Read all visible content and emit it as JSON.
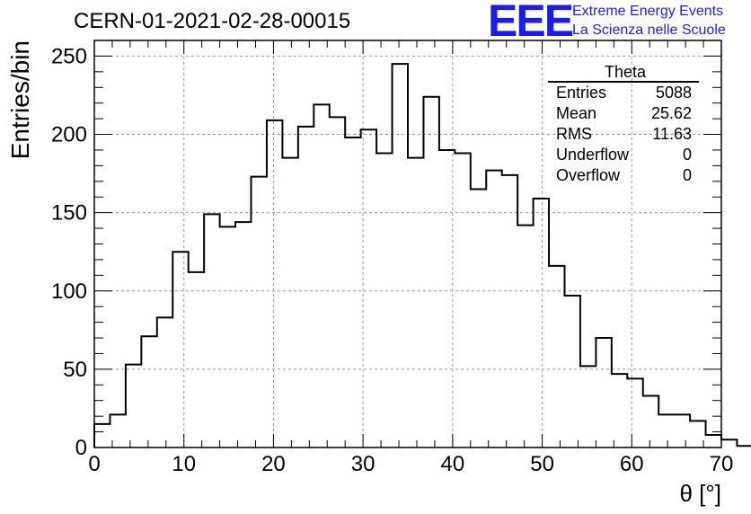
{
  "header": {
    "title": "CERN-01-2021-02-28-00015",
    "logo_mark": "EEE",
    "logo_line1": "Extreme Energy Events",
    "logo_line2": "La Scienza nelle Scuole",
    "accent": "#1c1cf0"
  },
  "stats_box": {
    "title": "Theta",
    "rows": [
      {
        "label": "Entries",
        "value": "5088"
      },
      {
        "label": "Mean",
        "value": "25.62"
      },
      {
        "label": "RMS",
        "value": "11.63"
      },
      {
        "label": "Underflow",
        "value": "0"
      },
      {
        "label": "Overflow",
        "value": "0"
      }
    ]
  },
  "chart_data": {
    "type": "bar",
    "style": "step-histogram",
    "title": "CERN-01-2021-02-28-00015",
    "xlabel": "θ [°]",
    "ylabel": "Entries/bin",
    "xlim": [
      0,
      70
    ],
    "ylim": [
      0,
      260
    ],
    "bin_width": 1.75,
    "bin_edges_start": 0,
    "values": [
      15,
      21,
      53,
      71,
      83,
      125,
      112,
      149,
      141,
      144,
      173,
      209,
      185,
      205,
      219,
      211,
      198,
      203,
      188,
      245,
      185,
      224,
      190,
      188,
      165,
      177,
      174,
      142,
      159,
      116,
      97,
      52,
      70,
      47,
      44,
      33,
      21,
      21,
      17,
      8,
      5,
      1,
      2,
      1,
      0,
      0,
      0,
      0,
      0,
      0,
      0,
      0,
      0,
      0,
      0,
      0,
      0,
      0,
      0,
      0
    ],
    "xticks": [
      0,
      10,
      20,
      30,
      40,
      50,
      60,
      70
    ],
    "yticks": [
      0,
      50,
      100,
      150,
      200,
      250
    ],
    "grid": true,
    "line_color": "#000000"
  }
}
